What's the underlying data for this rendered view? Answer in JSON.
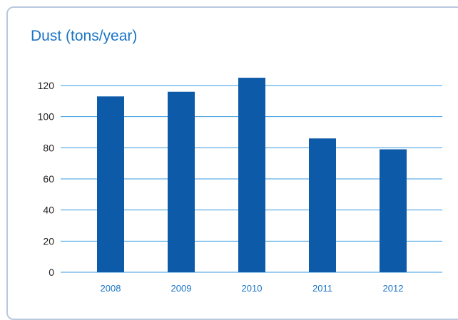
{
  "colors": {
    "bar": "#0d5aa9",
    "gridline": "#3a9be0",
    "tick_text": "#222222",
    "category_text": "#1a74c4",
    "title": "#1a74c4",
    "panel_border": "#b9c9de"
  },
  "chart_data": {
    "type": "bar",
    "title": "Dust (tons/year)",
    "categories": [
      "2008",
      "2009",
      "2010",
      "2011",
      "2012"
    ],
    "values": [
      113,
      116,
      125,
      86,
      79
    ],
    "ylim": [
      0,
      120
    ],
    "yticks": [
      0,
      20,
      40,
      60,
      80,
      100,
      120
    ],
    "xlabel": "",
    "ylabel": "",
    "grid": true,
    "legend": "none"
  }
}
